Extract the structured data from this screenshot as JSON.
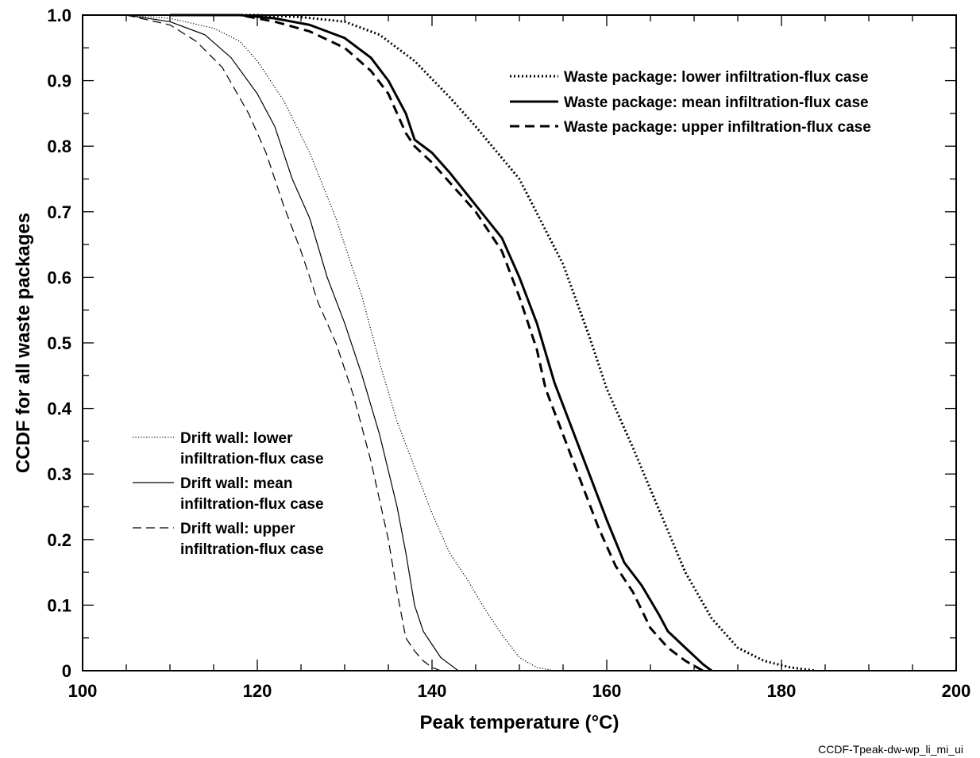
{
  "chart_data": {
    "type": "line",
    "xlabel": "Peak temperature (°C)",
    "ylabel": "CCDF for all waste packages",
    "xlim": [
      100,
      200
    ],
    "ylim": [
      0,
      1.0
    ],
    "x_ticks": [
      100,
      120,
      140,
      160,
      180,
      200
    ],
    "x_tick_labels": [
      "100",
      "120",
      "140",
      "160",
      "180",
      "200"
    ],
    "y_ticks": [
      0,
      0.1,
      0.2,
      0.3,
      0.4,
      0.5,
      0.6,
      0.7,
      0.8,
      0.9,
      1.0
    ],
    "y_tick_labels": [
      "0",
      "0.1",
      "0.2",
      "0.3",
      "0.4",
      "0.5",
      "0.6",
      "0.7",
      "0.8",
      "0.9",
      "1.0"
    ],
    "grid": false,
    "legends": [
      {
        "placement": "top-right",
        "series": [
          0,
          1,
          2
        ]
      },
      {
        "placement": "bottom-left",
        "series": [
          3,
          4,
          5
        ]
      }
    ],
    "series": [
      {
        "name": "Waste package: lower infiltration-flux case",
        "style": "dotted",
        "weight": "heavy",
        "points": [
          [
            110,
            1.0
          ],
          [
            120,
            1.0
          ],
          [
            125,
            0.997
          ],
          [
            130,
            0.99
          ],
          [
            134,
            0.97
          ],
          [
            138,
            0.93
          ],
          [
            142,
            0.875
          ],
          [
            145,
            0.83
          ],
          [
            150,
            0.75
          ],
          [
            155,
            0.62
          ],
          [
            158,
            0.51
          ],
          [
            160,
            0.43
          ],
          [
            163,
            0.34
          ],
          [
            166,
            0.245
          ],
          [
            169,
            0.15
          ],
          [
            172,
            0.08
          ],
          [
            175,
            0.035
          ],
          [
            178,
            0.015
          ],
          [
            181,
            0.005
          ],
          [
            184,
            0.0
          ]
        ]
      },
      {
        "name": "Waste package: mean infiltration-flux case",
        "style": "solid",
        "weight": "heavy",
        "points": [
          [
            110,
            1.0
          ],
          [
            118,
            1.0
          ],
          [
            122,
            0.995
          ],
          [
            126,
            0.985
          ],
          [
            130,
            0.965
          ],
          [
            133,
            0.935
          ],
          [
            135,
            0.9
          ],
          [
            137,
            0.85
          ],
          [
            138,
            0.81
          ],
          [
            140,
            0.79
          ],
          [
            142,
            0.76
          ],
          [
            145,
            0.71
          ],
          [
            148,
            0.66
          ],
          [
            150,
            0.6
          ],
          [
            152,
            0.53
          ],
          [
            154,
            0.44
          ],
          [
            156,
            0.37
          ],
          [
            158,
            0.3
          ],
          [
            160,
            0.23
          ],
          [
            162,
            0.165
          ],
          [
            164,
            0.13
          ],
          [
            166,
            0.085
          ],
          [
            167,
            0.06
          ],
          [
            169,
            0.035
          ],
          [
            171,
            0.01
          ],
          [
            172,
            0.0
          ]
        ]
      },
      {
        "name": "Waste package: upper infiltration-flux case",
        "style": "dashed",
        "weight": "heavy",
        "points": [
          [
            110,
            1.0
          ],
          [
            118,
            1.0
          ],
          [
            122,
            0.99
          ],
          [
            126,
            0.975
          ],
          [
            130,
            0.95
          ],
          [
            133,
            0.915
          ],
          [
            135,
            0.88
          ],
          [
            137,
            0.82
          ],
          [
            138,
            0.8
          ],
          [
            140,
            0.775
          ],
          [
            142,
            0.745
          ],
          [
            145,
            0.7
          ],
          [
            148,
            0.64
          ],
          [
            150,
            0.57
          ],
          [
            152,
            0.49
          ],
          [
            153,
            0.43
          ],
          [
            155,
            0.36
          ],
          [
            157,
            0.29
          ],
          [
            159,
            0.22
          ],
          [
            161,
            0.16
          ],
          [
            163,
            0.12
          ],
          [
            165,
            0.065
          ],
          [
            167,
            0.035
          ],
          [
            169,
            0.015
          ],
          [
            171,
            0.0
          ]
        ]
      },
      {
        "name": "Drift wall: lower infiltration-flux case",
        "style": "dotted",
        "weight": "light",
        "points": [
          [
            105,
            1.0
          ],
          [
            110,
            0.995
          ],
          [
            115,
            0.98
          ],
          [
            118,
            0.96
          ],
          [
            120,
            0.93
          ],
          [
            123,
            0.87
          ],
          [
            126,
            0.79
          ],
          [
            129,
            0.69
          ],
          [
            132,
            0.57
          ],
          [
            134,
            0.47
          ],
          [
            136,
            0.38
          ],
          [
            138,
            0.31
          ],
          [
            140,
            0.24
          ],
          [
            142,
            0.18
          ],
          [
            144,
            0.14
          ],
          [
            146,
            0.095
          ],
          [
            148,
            0.055
          ],
          [
            150,
            0.02
          ],
          [
            152,
            0.005
          ],
          [
            154,
            0.0
          ]
        ]
      },
      {
        "name": "Drift wall: mean infiltration-flux case",
        "style": "solid",
        "weight": "light",
        "points": [
          [
            105,
            1.0
          ],
          [
            110,
            0.99
          ],
          [
            114,
            0.97
          ],
          [
            117,
            0.935
          ],
          [
            120,
            0.88
          ],
          [
            122,
            0.83
          ],
          [
            124,
            0.75
          ],
          [
            126,
            0.69
          ],
          [
            128,
            0.6
          ],
          [
            130,
            0.53
          ],
          [
            132,
            0.45
          ],
          [
            134,
            0.36
          ],
          [
            136,
            0.25
          ],
          [
            137,
            0.18
          ],
          [
            138,
            0.1
          ],
          [
            139,
            0.06
          ],
          [
            140,
            0.04
          ],
          [
            141,
            0.02
          ],
          [
            142,
            0.01
          ],
          [
            143,
            0.0
          ]
        ]
      },
      {
        "name": "Drift wall: upper infiltration-flux case",
        "style": "dashed",
        "weight": "light",
        "points": [
          [
            105,
            1.0
          ],
          [
            110,
            0.985
          ],
          [
            113,
            0.96
          ],
          [
            116,
            0.92
          ],
          [
            119,
            0.85
          ],
          [
            121,
            0.79
          ],
          [
            123,
            0.71
          ],
          [
            125,
            0.64
          ],
          [
            127,
            0.56
          ],
          [
            129,
            0.5
          ],
          [
            131,
            0.42
          ],
          [
            133,
            0.32
          ],
          [
            135,
            0.2
          ],
          [
            136,
            0.12
          ],
          [
            137,
            0.05
          ],
          [
            138,
            0.03
          ],
          [
            139,
            0.015
          ],
          [
            140,
            0.005
          ],
          [
            141,
            0.0
          ]
        ]
      }
    ]
  },
  "legend_text": {
    "wp_lower": "Waste package: lower infiltration-flux case",
    "wp_mean": "Waste package: mean infiltration-flux case",
    "wp_upper": "Waste package: upper infiltration-flux case",
    "dw_lower_line1": "Drift wall: lower",
    "dw_lower_line2": "infiltration-flux case",
    "dw_mean_line1": "Drift wall: mean",
    "dw_mean_line2": "infiltration-flux case",
    "dw_upper_line1": "Drift wall: upper",
    "dw_upper_line2": "infiltration-flux case"
  },
  "footnote": "CCDF-Tpeak-dw-wp_li_mi_ui"
}
